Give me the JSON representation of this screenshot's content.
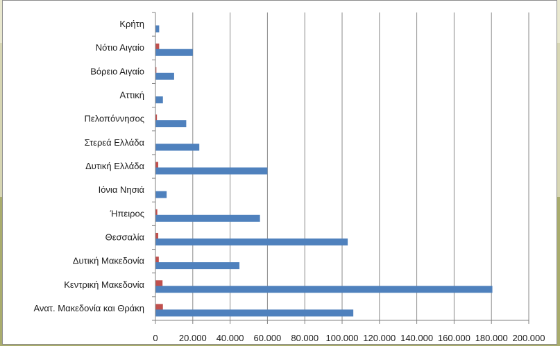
{
  "chart_data": {
    "type": "bar",
    "orientation": "horizontal",
    "title": "",
    "xlabel": "",
    "ylabel": "",
    "xlim": [
      0,
      200000
    ],
    "grid": true,
    "legend": "none",
    "categories": [
      "Κρήτη",
      "Νότιο Αιγαίο",
      "Βόρειο Αιγαίο",
      "Αττική",
      "Πελοπόννησος",
      "Στερεά Ελλάδα",
      "Δυτική Ελλάδα",
      "Ιόνια Νησιά",
      "Ήπειρος",
      "Θεσσαλία",
      "Δυτική Μακεδονία",
      "Κεντρική Μακεδονία",
      "Ανατ. Μακεδονία και Θράκη"
    ],
    "x_tick_labels": [
      "0",
      "20.000",
      "40.000",
      "60.000",
      "80.000",
      "100.000",
      "120.000",
      "140.000",
      "160.000",
      "180.000",
      "200.000"
    ],
    "x_tick_values": [
      0,
      20000,
      40000,
      60000,
      80000,
      100000,
      120000,
      140000,
      160000,
      180000,
      200000
    ],
    "series": [
      {
        "color": "#4f81bd",
        "values": [
          2000,
          20000,
          10000,
          4000,
          16500,
          23500,
          60000,
          6000,
          56000,
          103000,
          45000,
          180500,
          106000
        ]
      },
      {
        "color": "#c0504d",
        "values": [
          0,
          2000,
          500,
          0,
          800,
          0,
          1500,
          0,
          1000,
          1500,
          1800,
          3800,
          4000
        ]
      }
    ]
  }
}
